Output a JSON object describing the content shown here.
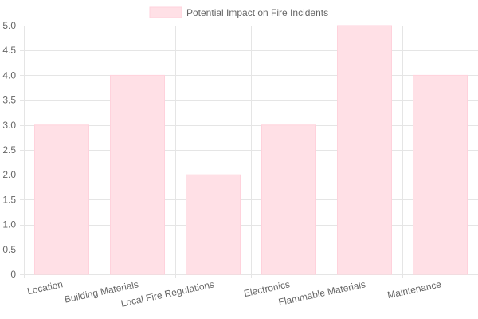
{
  "chart_data": {
    "type": "bar",
    "categories": [
      "Location",
      "Building Materials",
      "Local Fire Regulations",
      "Electronics",
      "Flammable Materials",
      "Maintenance"
    ],
    "series": [
      {
        "name": "Potential Impact on Fire Incidents",
        "values": [
          3,
          4,
          2,
          3,
          5,
          4
        ]
      }
    ],
    "ylim": [
      0,
      5
    ],
    "yticks": [
      "0",
      "0.5",
      "1.0",
      "1.5",
      "2.0",
      "2.5",
      "3.0",
      "3.5",
      "4.0",
      "4.5",
      "5.0"
    ],
    "grid": true,
    "legend_position": "top",
    "colors": {
      "bar_fill": "#ffe0e6",
      "bar_edge": "#ffd2dc",
      "grid": "#e5e5e5",
      "text": "#666666"
    }
  }
}
